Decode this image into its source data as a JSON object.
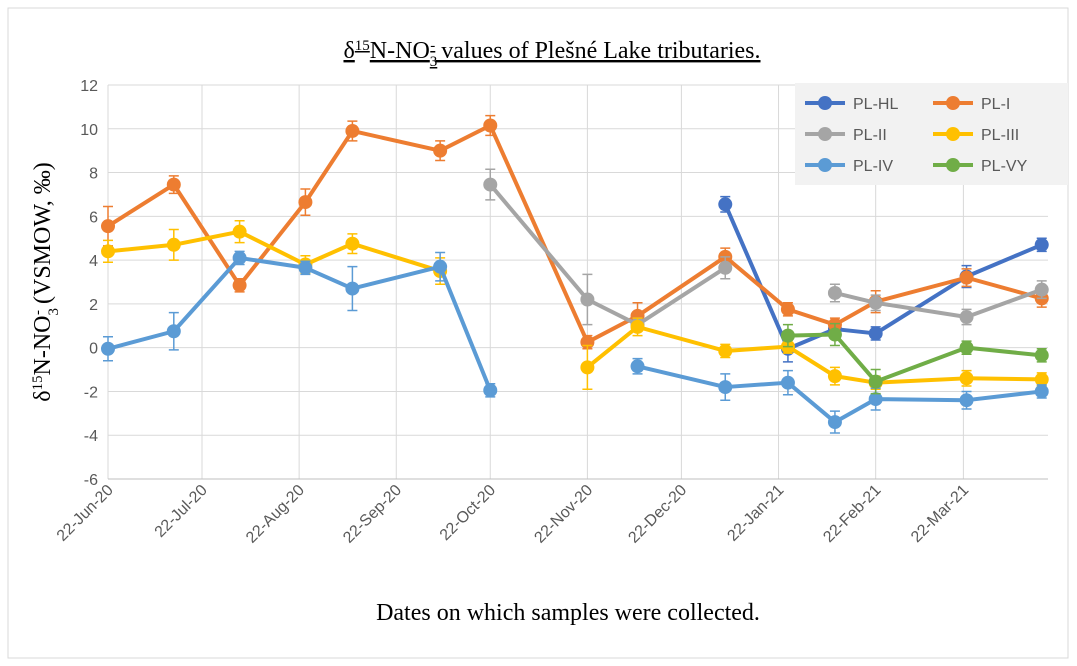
{
  "chart_data": {
    "type": "line",
    "title": [
      "δ",
      "15",
      "N-NO",
      "3",
      "-",
      " values of Plešné Lake tributaries."
    ],
    "ylabel": [
      "δ",
      "15",
      "N-NO",
      "3",
      "-",
      " (VSMOW, ‰)"
    ],
    "xlabel": "Dates on which samples were collected.",
    "x": [
      "2020-06-22",
      "2020-07-13",
      "2020-08-03",
      "2020-08-24",
      "2020-09-08",
      "2020-10-06",
      "2020-10-22",
      "2020-11-22",
      "2020-12-08",
      "2021-01-05",
      "2021-01-25",
      "2021-02-09",
      "2021-02-22",
      "2021-03-23",
      "2021-04-16"
    ],
    "xlim": [
      "2020-06-22",
      "2021-04-18"
    ],
    "xticks": [
      {
        "value": "2020-06-22",
        "label": "22-Jun-20"
      },
      {
        "value": "2020-07-22",
        "label": "22-Jul-20"
      },
      {
        "value": "2020-08-22",
        "label": "22-Aug-20"
      },
      {
        "value": "2020-09-22",
        "label": "22-Sep-20"
      },
      {
        "value": "2020-10-22",
        "label": "22-Oct-20"
      },
      {
        "value": "2020-11-22",
        "label": "22-Nov-20"
      },
      {
        "value": "2020-12-22",
        "label": "22-Dec-20"
      },
      {
        "value": "2021-01-22",
        "label": "22-Jan-21"
      },
      {
        "value": "2021-02-22",
        "label": "22-Feb-21"
      },
      {
        "value": "2021-03-22",
        "label": "22-Mar-21"
      }
    ],
    "ylim": [
      -6,
      12
    ],
    "yticks": [
      -6,
      -4,
      -2,
      0,
      2,
      4,
      6,
      8,
      10,
      12
    ],
    "grid": true,
    "legend": "upper right",
    "series": [
      {
        "name": "PL-HL",
        "color": "#4472c4",
        "values": [
          null,
          null,
          null,
          null,
          null,
          null,
          null,
          null,
          null,
          6.55,
          -0.05,
          0.85,
          0.65,
          3.25,
          4.7
        ],
        "errors": [
          null,
          null,
          null,
          null,
          null,
          null,
          null,
          null,
          null,
          0.35,
          0.6,
          0.3,
          0.3,
          0.5,
          0.3
        ]
      },
      {
        "name": "PL-I",
        "color": "#ed7d31",
        "values": [
          5.55,
          7.45,
          2.85,
          6.65,
          9.9,
          9.0,
          10.15,
          0.25,
          1.45,
          4.15,
          1.75,
          1.05,
          2.1,
          3.2,
          2.25
        ],
        "errors": [
          0.9,
          0.4,
          0.3,
          0.6,
          0.45,
          0.45,
          0.45,
          0.3,
          0.6,
          0.4,
          0.3,
          0.3,
          0.5,
          0.4,
          0.4
        ]
      },
      {
        "name": "PL-II",
        "color": "#a5a5a5",
        "values": [
          null,
          null,
          null,
          null,
          null,
          null,
          7.45,
          2.2,
          1.05,
          3.65,
          null,
          2.5,
          2.05,
          1.4,
          2.65
        ],
        "errors": [
          null,
          null,
          null,
          null,
          null,
          null,
          0.7,
          1.15,
          0.3,
          0.5,
          null,
          0.4,
          0.35,
          0.35,
          0.4
        ]
      },
      {
        "name": "PL-III",
        "color": "#ffc000",
        "values": [
          4.4,
          4.7,
          5.3,
          3.8,
          4.75,
          3.5,
          null,
          -0.9,
          0.95,
          -0.15,
          0.05,
          -1.3,
          -1.6,
          -1.4,
          -1.45
        ],
        "errors": [
          0.5,
          0.7,
          0.5,
          0.4,
          0.45,
          0.6,
          null,
          1.0,
          0.4,
          0.3,
          0.3,
          0.4,
          0.3,
          0.35,
          0.3
        ]
      },
      {
        "name": "PL-IV",
        "color": "#5b9bd5",
        "values": [
          -0.05,
          0.75,
          4.1,
          3.65,
          2.7,
          3.7,
          -1.95,
          null,
          -0.85,
          -1.8,
          -1.6,
          -3.4,
          -2.35,
          -2.4,
          -2.0
        ],
        "errors": [
          0.55,
          0.85,
          0.3,
          0.3,
          1.0,
          0.65,
          0.3,
          null,
          0.35,
          0.6,
          0.55,
          0.5,
          0.5,
          0.4,
          0.3
        ]
      },
      {
        "name": "PL-VY",
        "color": "#70ad47",
        "values": [
          null,
          null,
          null,
          null,
          null,
          null,
          null,
          null,
          null,
          null,
          0.55,
          0.6,
          -1.55,
          0.0,
          -0.35
        ],
        "errors": [
          null,
          null,
          null,
          null,
          null,
          null,
          null,
          null,
          null,
          null,
          0.5,
          0.5,
          0.55,
          0.3,
          0.3
        ]
      }
    ]
  }
}
